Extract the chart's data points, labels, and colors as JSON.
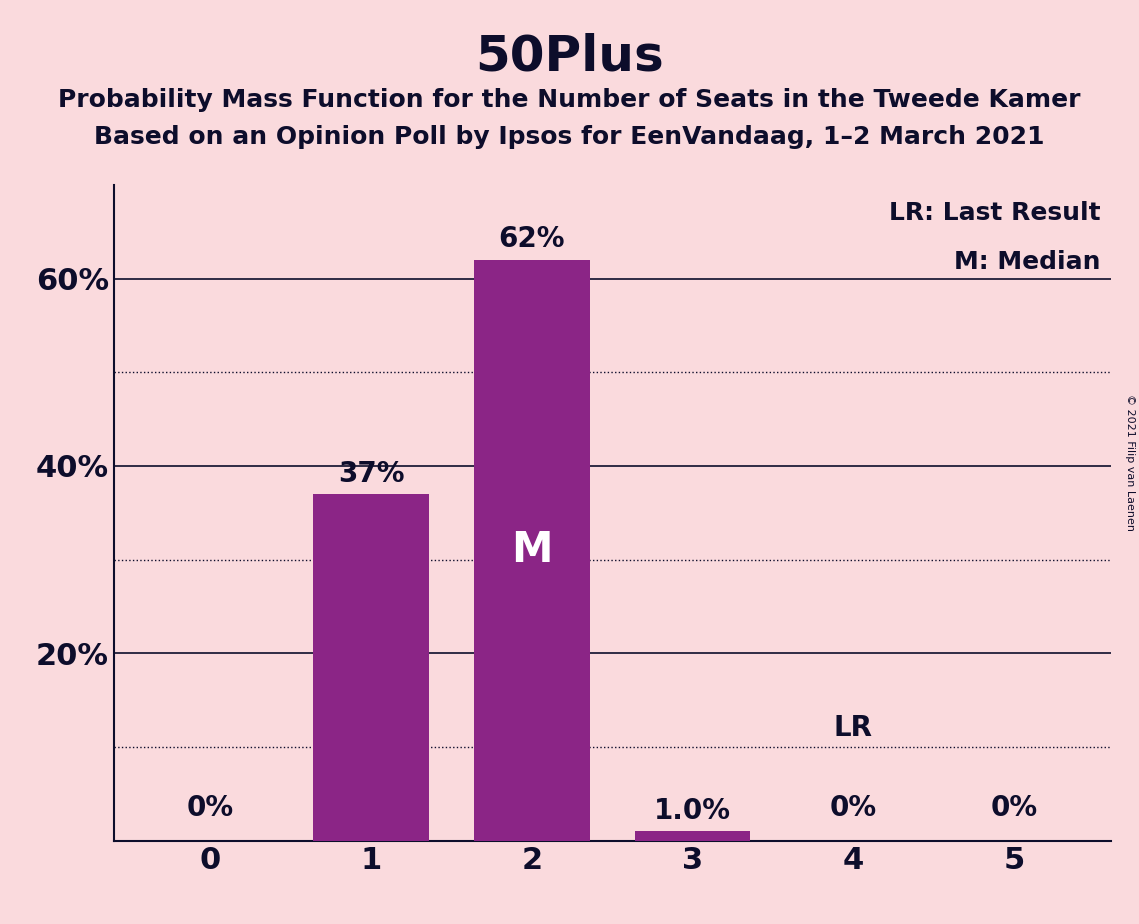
{
  "title": "50Plus",
  "subtitle1": "Probability Mass Function for the Number of Seats in the Tweede Kamer",
  "subtitle2": "Based on an Opinion Poll by Ipsos for EenVandaag, 1–2 March 2021",
  "copyright": "© 2021 Filip van Laenen",
  "categories": [
    0,
    1,
    2,
    3,
    4,
    5
  ],
  "values": [
    0.0,
    0.37,
    0.62,
    0.01,
    0.0,
    0.0
  ],
  "bar_color": "#8B2586",
  "background_color": "#FADADD",
  "text_color": "#0d0d2b",
  "median": 2,
  "last_result": 4,
  "ylim": [
    0,
    0.7
  ],
  "yticks": [
    0.2,
    0.4,
    0.6
  ],
  "yticks_dotted": [
    0.1,
    0.3,
    0.5
  ],
  "bar_labels": [
    "0%",
    "37%",
    "62%",
    "1.0%",
    "0%",
    "0%"
  ],
  "legend_lr": "LR: Last Result",
  "legend_m": "M: Median",
  "title_fontsize": 36,
  "subtitle_fontsize": 18,
  "label_fontsize": 20,
  "axis_fontsize": 22,
  "legend_fontsize": 18,
  "bar_width": 0.72
}
